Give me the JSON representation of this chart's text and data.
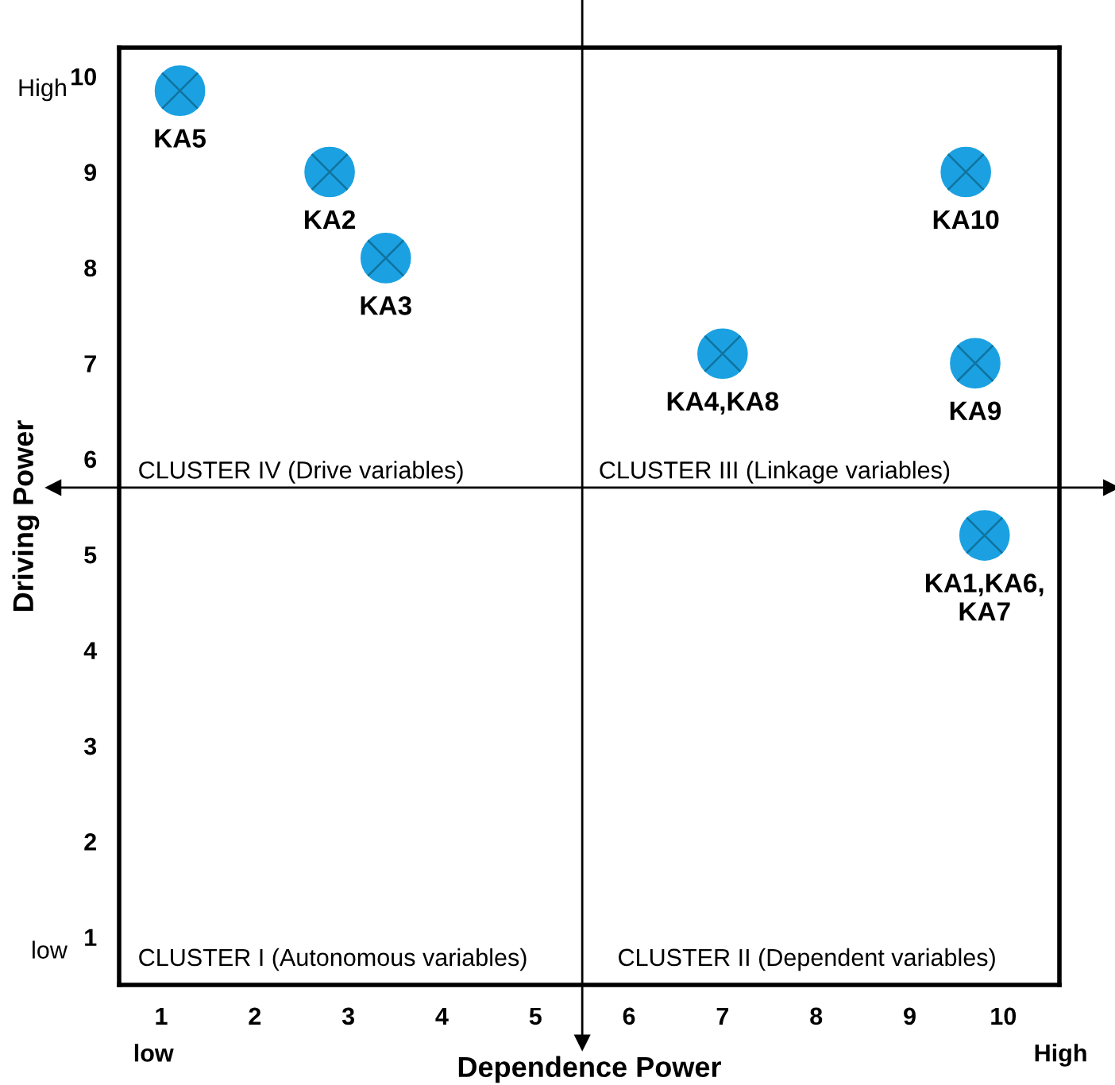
{
  "chart_data": {
    "type": "scatter",
    "xlabel": "Dependence Power",
    "ylabel": "Driving Power",
    "x": [
      1.2,
      2.8,
      3.4,
      9.6,
      7.0,
      9.7,
      9.8
    ],
    "values": [
      9.85,
      9.0,
      8.1,
      9.0,
      7.1,
      7.0,
      5.2
    ],
    "color": "#1ba1e2",
    "marker": "circle",
    "xlim": [
      0.55,
      10.6
    ],
    "ylim": [
      0.5,
      10.3
    ],
    "xticks": [
      1,
      2,
      3,
      4,
      5,
      6,
      7,
      8,
      9,
      10
    ],
    "yticks": [
      1,
      2,
      3,
      4,
      5,
      6,
      7,
      8,
      9,
      10
    ],
    "grid": false,
    "ref_lines": [
      {
        "axis": "x",
        "value": 5.5
      },
      {
        "axis": "y",
        "value": 5.7
      }
    ],
    "annotations": [
      {
        "text": "KA5",
        "x": 1.2,
        "y": 9.85
      },
      {
        "text": "KA2",
        "x": 2.8,
        "y": 9.0
      },
      {
        "text": "KA3",
        "x": 3.4,
        "y": 8.1
      },
      {
        "text": "KA10",
        "x": 9.6,
        "y": 9.0
      },
      {
        "text": "KA4,KA8",
        "x": 7.0,
        "y": 7.1
      },
      {
        "text": "KA9",
        "x": 9.7,
        "y": 7.0
      },
      {
        "text": "KA1,KA6,\nKA7",
        "x": 9.8,
        "y": 5.2
      },
      "CLUSTER IV (Drive variables)",
      "CLUSTER III (Linkage variables)",
      "CLUSTER I (Autonomous variables)",
      "CLUSTER II (Dependent variables)",
      "High",
      "low",
      "low",
      "High"
    ]
  }
}
